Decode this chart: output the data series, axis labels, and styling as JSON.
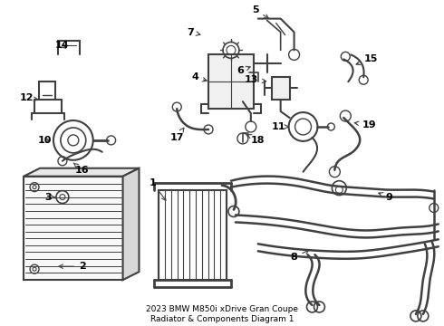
{
  "bg_color": "#ffffff",
  "line_color": "#404040",
  "text_color": "#000000",
  "figsize": [
    4.9,
    3.6
  ],
  "dpi": 100,
  "title": "2023 BMW M850i xDrive Gran Coupe\nRadiator & Components Diagram 1"
}
